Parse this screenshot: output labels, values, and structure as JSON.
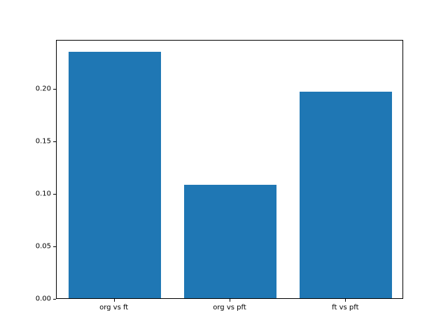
{
  "chart_data": {
    "type": "bar",
    "categories": [
      "org vs ft",
      "org vs pft",
      "ft vs pft"
    ],
    "values": [
      0.235,
      0.108,
      0.197
    ],
    "title": "",
    "xlabel": "",
    "ylabel": "",
    "ylim": [
      0,
      0.2467
    ],
    "yticks": [
      0.0,
      0.05,
      0.1,
      0.15,
      0.2
    ],
    "ytick_format_decimals": 2,
    "bar_color": "#1f77b4",
    "bar_width_fraction": 0.8,
    "grid": false,
    "legend_position": "none",
    "background_color": "#ffffff",
    "spine_color": "#000000"
  }
}
